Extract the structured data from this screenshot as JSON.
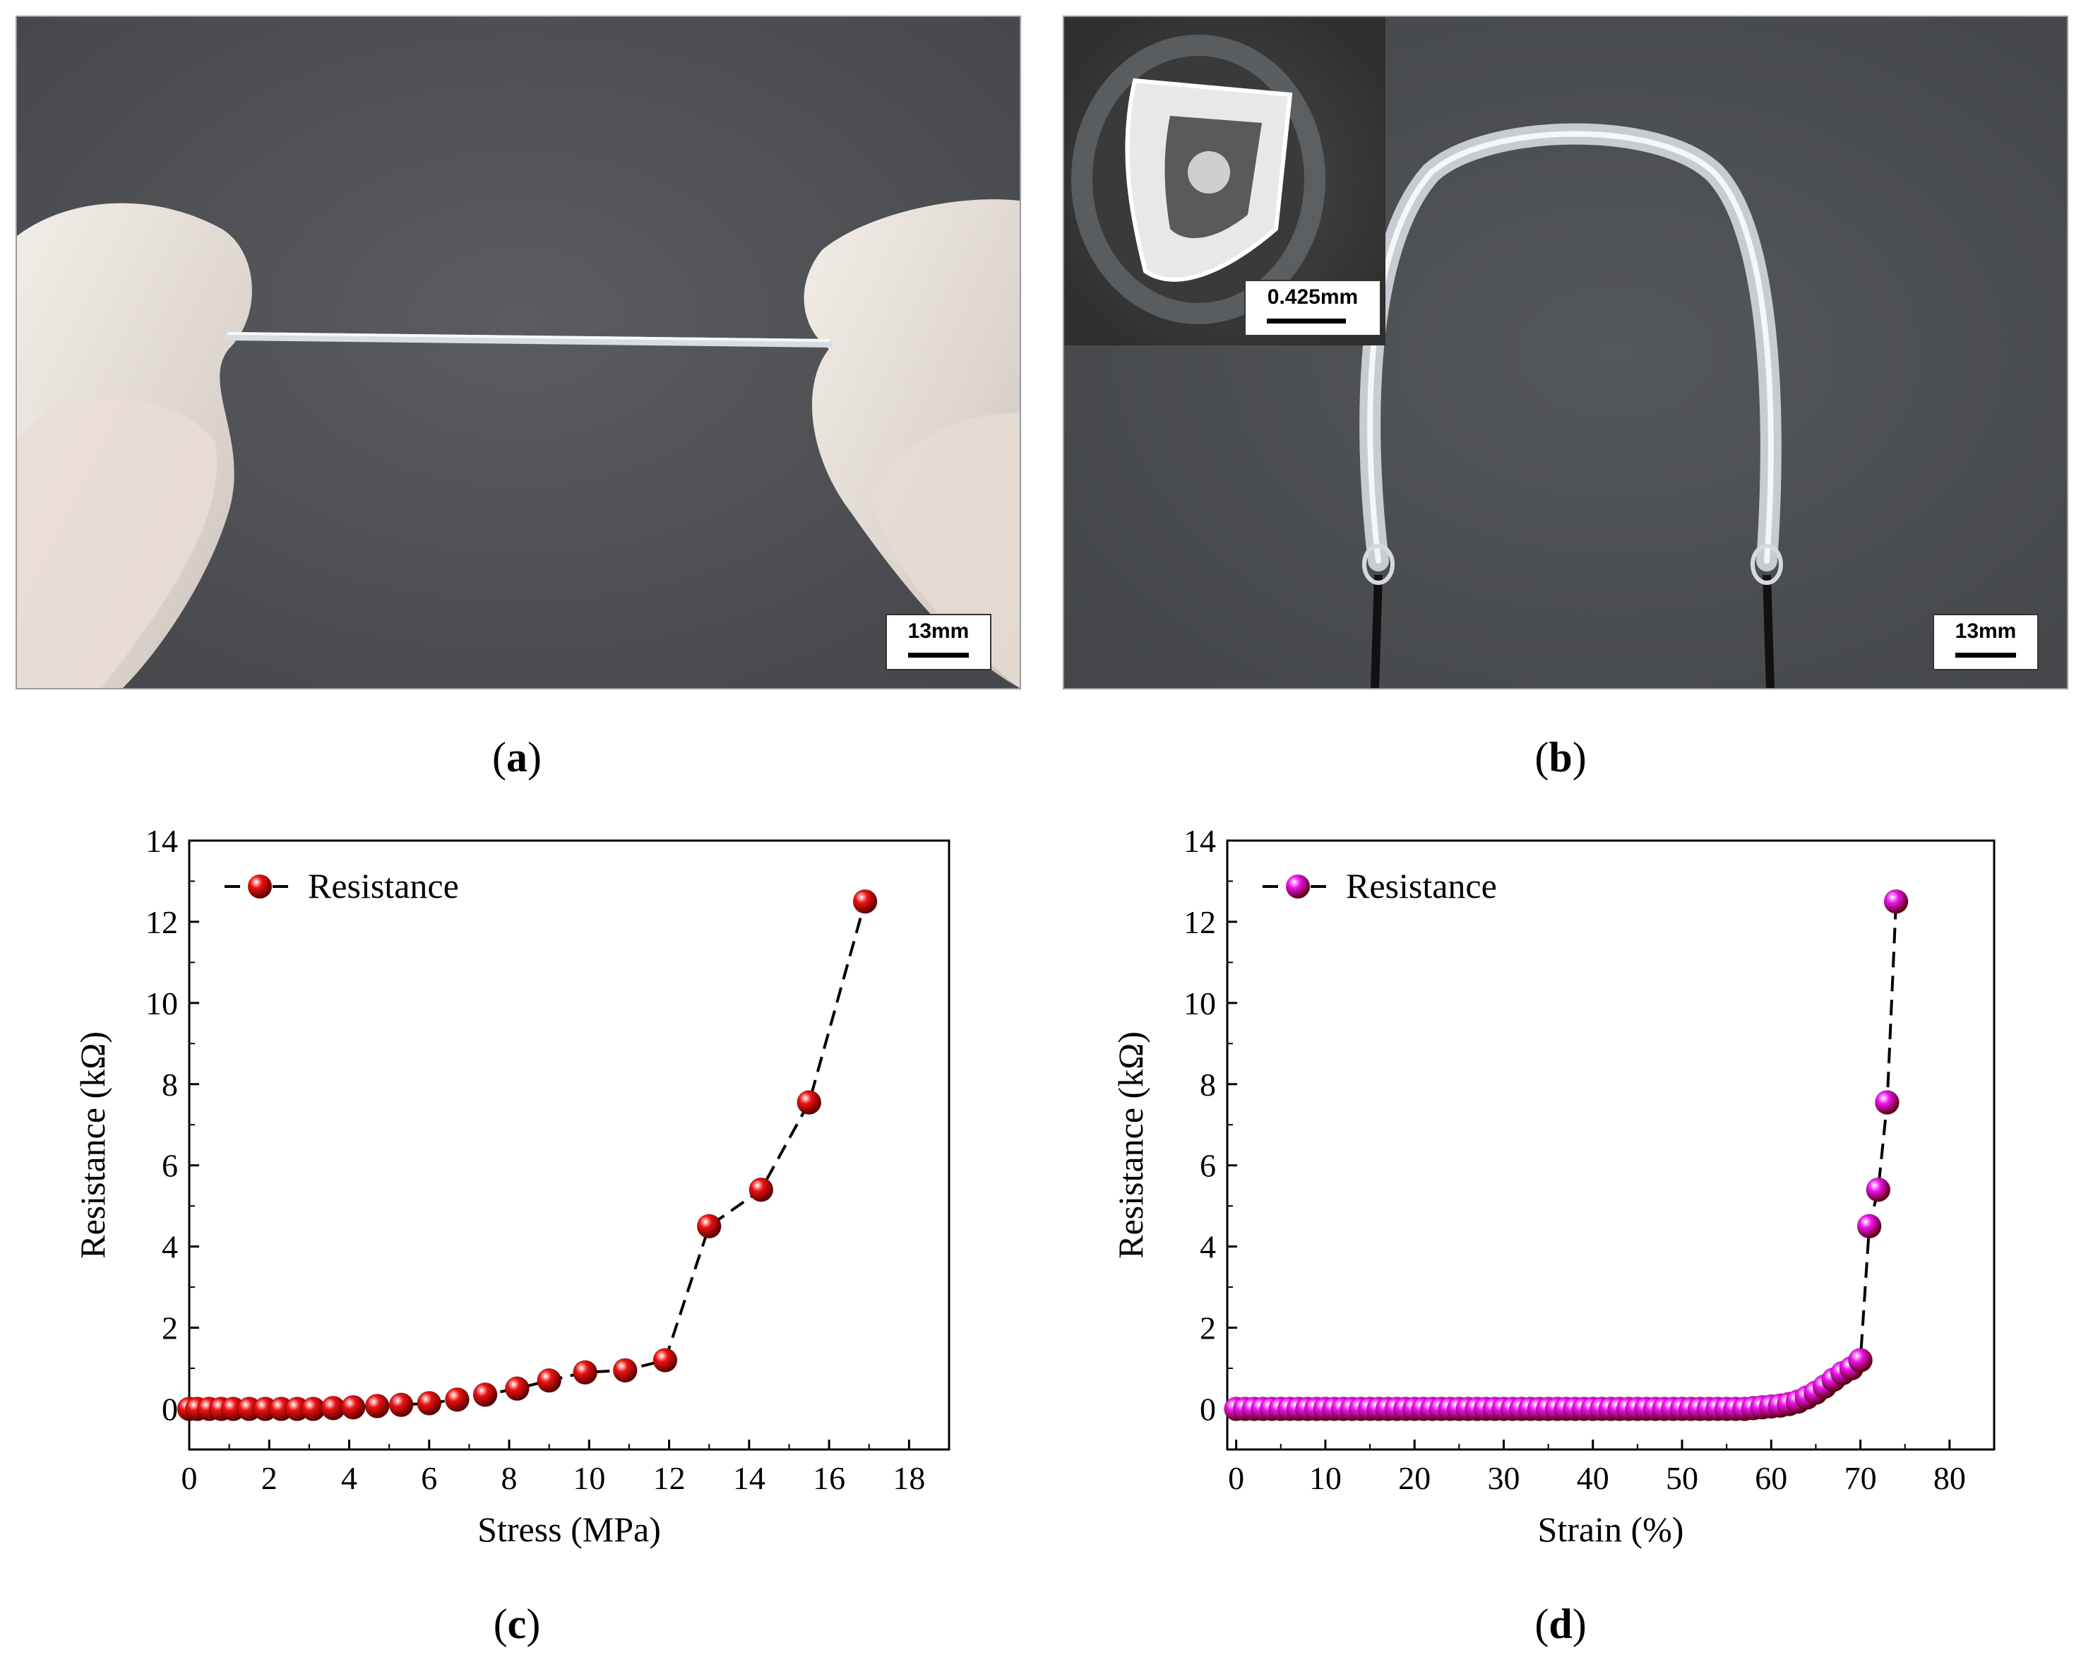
{
  "panel_a": {
    "label_open": "(",
    "label_letter": "a",
    "label_close": ")",
    "scale_text": "13mm"
  },
  "panel_b": {
    "label_open": "(",
    "label_letter": "b",
    "label_close": ")",
    "scale_text": "13mm",
    "inset_scale_text": "0.425mm"
  },
  "panel_c": {
    "label_open": "(",
    "label_letter": "c",
    "label_close": ")"
  },
  "panel_d": {
    "label_open": "(",
    "label_letter": "d",
    "label_close": ")"
  },
  "chart_data": [
    {
      "type": "line",
      "marker_color": "#ee1111",
      "line_style": "dashed",
      "xlabel": "Stress (MPa)",
      "ylabel": "Resistance (kΩ)",
      "xlim": [
        0,
        19
      ],
      "ylim": [
        -1,
        14
      ],
      "xticks": [
        0,
        2,
        4,
        6,
        8,
        10,
        12,
        14,
        16,
        18
      ],
      "yticks": [
        0,
        2,
        4,
        6,
        8,
        10,
        12,
        14
      ],
      "legend": "top-left",
      "series": [
        {
          "name": "Resistance",
          "x": [
            0,
            0.2,
            0.5,
            0.8,
            1.1,
            1.5,
            1.9,
            2.3,
            2.7,
            3.1,
            3.6,
            4.1,
            4.7,
            5.3,
            6.0,
            6.7,
            7.4,
            8.2,
            9.0,
            9.9,
            10.9,
            11.9,
            13.0,
            14.3,
            15.5,
            16.9
          ],
          "y": [
            0,
            0,
            0,
            0,
            0,
            0,
            0,
            0,
            0,
            0,
            0.02,
            0.04,
            0.07,
            0.1,
            0.14,
            0.23,
            0.35,
            0.5,
            0.7,
            0.9,
            0.95,
            1.2,
            4.5,
            5.4,
            7.55,
            12.5
          ]
        }
      ]
    },
    {
      "type": "line",
      "marker_color": "#ee11ee",
      "line_style": "dashed",
      "xlabel": "Strain (%)",
      "ylabel": "Resistance (kΩ)",
      "xlim": [
        -1,
        85
      ],
      "ylim": [
        -1,
        14
      ],
      "xticks": [
        0,
        10,
        20,
        30,
        40,
        50,
        60,
        70,
        80
      ],
      "yticks": [
        0,
        2,
        4,
        6,
        8,
        10,
        12,
        14
      ],
      "legend": "top-left",
      "series": [
        {
          "name": "Resistance",
          "x": [
            0,
            1,
            2,
            3,
            4,
            5,
            6,
            7,
            8,
            9,
            10,
            11,
            12,
            13,
            14,
            15,
            16,
            17,
            18,
            19,
            20,
            21,
            22,
            23,
            24,
            25,
            26,
            27,
            28,
            29,
            30,
            31,
            32,
            33,
            34,
            35,
            36,
            37,
            38,
            39,
            40,
            41,
            42,
            43,
            44,
            45,
            46,
            47,
            48,
            49,
            50,
            51,
            52,
            53,
            54,
            55,
            56,
            57,
            58,
            59,
            60,
            61,
            62,
            63,
            64,
            65,
            66,
            67,
            68,
            69,
            70,
            71,
            72,
            73,
            74
          ],
          "y": [
            0,
            0,
            0,
            0,
            0,
            0,
            0,
            0,
            0,
            0,
            0,
            0,
            0,
            0,
            0,
            0,
            0,
            0,
            0,
            0,
            0,
            0,
            0,
            0,
            0,
            0,
            0,
            0,
            0,
            0,
            0,
            0,
            0,
            0,
            0,
            0,
            0,
            0,
            0,
            0,
            0,
            0,
            0,
            0,
            0,
            0,
            0,
            0,
            0,
            0,
            0,
            0,
            0,
            0,
            0,
            0,
            0,
            0,
            0.02,
            0.04,
            0.06,
            0.08,
            0.12,
            0.18,
            0.28,
            0.4,
            0.55,
            0.72,
            0.88,
            1.0,
            1.2,
            4.5,
            5.4,
            7.55,
            12.5
          ]
        }
      ]
    }
  ]
}
